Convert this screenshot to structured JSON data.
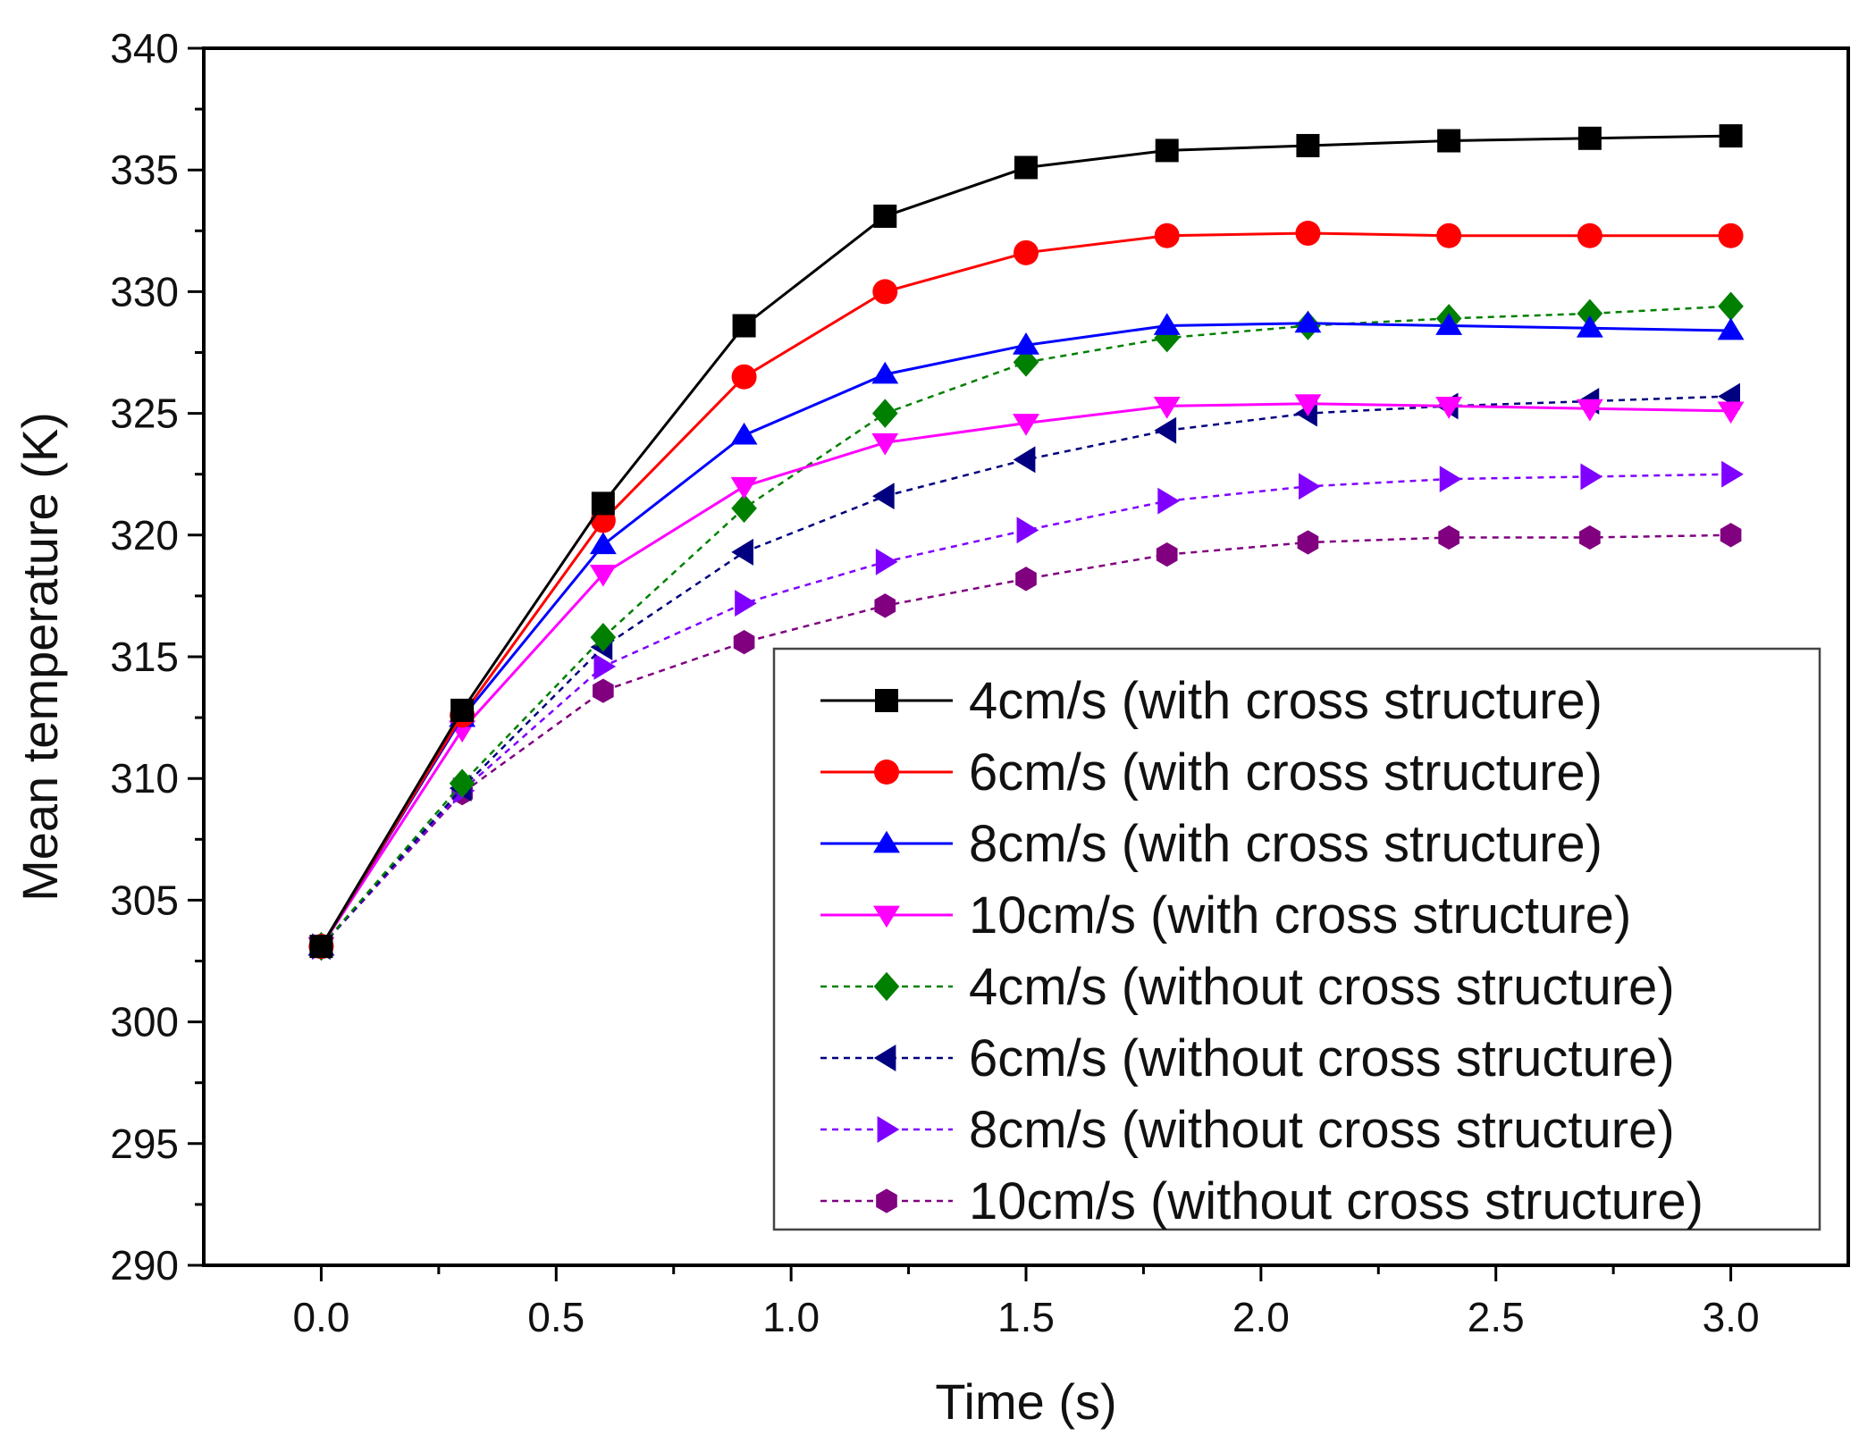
{
  "chart_data": {
    "type": "line",
    "title": "",
    "xlabel": "Time (s)",
    "ylabel": "Mean temperature (K)",
    "xlim": [
      -0.25,
      3.25
    ],
    "ylim": [
      290,
      340
    ],
    "x_ticks": [
      0.0,
      0.5,
      1.0,
      1.5,
      2.0,
      2.5,
      3.0
    ],
    "x_tick_labels": [
      "0.0",
      "0.5",
      "1.0",
      "1.5",
      "2.0",
      "2.5",
      "3.0"
    ],
    "y_ticks": [
      290,
      295,
      300,
      305,
      310,
      315,
      320,
      325,
      330,
      335,
      340
    ],
    "y_tick_labels": [
      "290",
      "295",
      "300",
      "305",
      "310",
      "315",
      "320",
      "325",
      "330",
      "335",
      "340"
    ],
    "grid": false,
    "legend_position": "bottom-right",
    "x": [
      0.0,
      0.3,
      0.6,
      0.9,
      1.2,
      1.5,
      1.8,
      2.1,
      2.4,
      2.7,
      3.0
    ],
    "series": [
      {
        "name": "4cm/s (with cross structure)",
        "color": "#000000",
        "marker": "square",
        "dashed": false,
        "values": [
          303.1,
          312.8,
          321.3,
          328.6,
          333.1,
          335.1,
          335.8,
          336.0,
          336.2,
          336.3,
          336.4
        ]
      },
      {
        "name": "6cm/s (with cross structure)",
        "color": "#ff0000",
        "marker": "circle",
        "dashed": false,
        "values": [
          303.1,
          312.6,
          320.6,
          326.5,
          330.0,
          331.6,
          332.3,
          332.4,
          332.3,
          332.3,
          332.3
        ]
      },
      {
        "name": "8cm/s (with cross structure)",
        "color": "#0000ff",
        "marker": "triangle-up",
        "dashed": false,
        "values": [
          303.1,
          312.5,
          319.6,
          324.1,
          326.6,
          327.8,
          328.6,
          328.7,
          328.6,
          328.5,
          328.4
        ]
      },
      {
        "name": "10cm/s (with cross structure)",
        "color": "#ff00ff",
        "marker": "triangle-down",
        "dashed": false,
        "values": [
          303.1,
          312.0,
          318.4,
          322.0,
          323.8,
          324.6,
          325.3,
          325.4,
          325.3,
          325.2,
          325.1
        ]
      },
      {
        "name": "4cm/s (without cross structure)",
        "color": "#008000",
        "marker": "diamond",
        "dashed": true,
        "values": [
          303.1,
          309.8,
          315.8,
          321.1,
          325.0,
          327.1,
          328.1,
          328.6,
          328.9,
          329.1,
          329.4
        ]
      },
      {
        "name": "6cm/s (without cross structure)",
        "color": "#000080",
        "marker": "triangle-left",
        "dashed": true,
        "values": [
          303.1,
          309.6,
          315.4,
          319.3,
          321.6,
          323.1,
          324.3,
          325.0,
          325.3,
          325.5,
          325.7
        ]
      },
      {
        "name": "8cm/s (without cross structure)",
        "color": "#8000ff",
        "marker": "triangle-right",
        "dashed": true,
        "values": [
          303.1,
          309.5,
          314.6,
          317.2,
          318.9,
          320.2,
          321.4,
          322.0,
          322.3,
          322.4,
          322.5
        ]
      },
      {
        "name": "10cm/s (without cross structure)",
        "color": "#800080",
        "marker": "hexagon",
        "dashed": true,
        "values": [
          303.1,
          309.4,
          313.6,
          315.6,
          317.1,
          318.2,
          319.2,
          319.7,
          319.9,
          319.9,
          320.0
        ]
      }
    ]
  }
}
